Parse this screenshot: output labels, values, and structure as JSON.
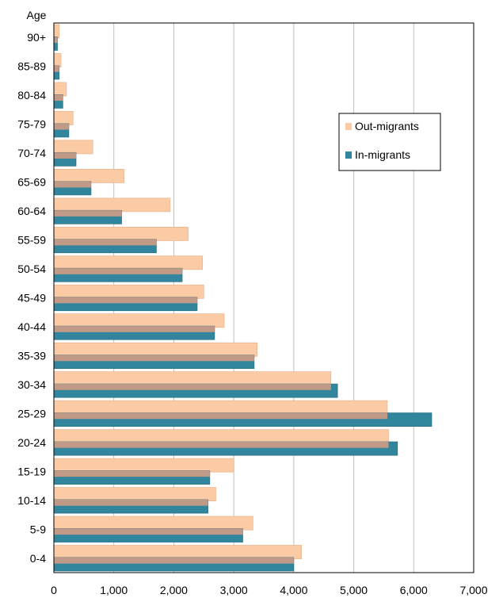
{
  "chart_data": {
    "type": "bar",
    "orientation": "horizontal",
    "ylabel": "Age",
    "categories": [
      "0-4",
      "5-9",
      "10-14",
      "15-19",
      "20-24",
      "25-29",
      "30-34",
      "35-39",
      "40-44",
      "45-49",
      "50-54",
      "55-59",
      "60-64",
      "65-69",
      "70-74",
      "75-79",
      "80-84",
      "85-89",
      "90+"
    ],
    "series": [
      {
        "name": "Out-migrants",
        "color": "#fbcba5",
        "values": [
          4130,
          3320,
          2700,
          3000,
          5580,
          5560,
          4620,
          3390,
          2840,
          2500,
          2480,
          2240,
          1940,
          1170,
          650,
          320,
          210,
          120,
          90
        ]
      },
      {
        "name": "In-migrants",
        "color": "#31859c",
        "values": [
          4000,
          3150,
          2570,
          2600,
          5730,
          6300,
          4730,
          3340,
          2680,
          2390,
          2140,
          1710,
          1130,
          620,
          370,
          250,
          150,
          90,
          60
        ]
      }
    ],
    "xticks": [
      "0",
      "1,000",
      "2,000",
      "3,000",
      "4,000",
      "5,000",
      "6,000",
      "7,000"
    ],
    "xlim": [
      0,
      7000
    ],
    "grid": "vertical",
    "legend_position": "right-upper"
  }
}
